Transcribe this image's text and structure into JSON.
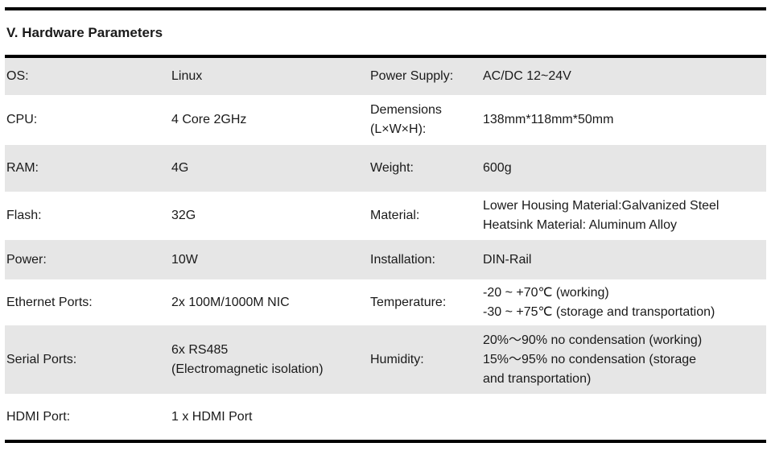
{
  "title": "V. Hardware Parameters",
  "rows": [
    {
      "label": "OS:",
      "value": "Linux",
      "label2": "Power Supply:",
      "value2": [
        "AC/DC 12~24V"
      ]
    },
    {
      "label": "CPU:",
      "value": "4 Core 2GHz",
      "label2": [
        "Demensions",
        "(L×W×H):"
      ],
      "value2": [
        "138mm*118mm*50mm"
      ]
    },
    {
      "label": "RAM:",
      "value": "4G",
      "label2": "Weight:",
      "value2": [
        "600g"
      ]
    },
    {
      "label": "Flash:",
      "value": "32G",
      "label2": "Material:",
      "value2": [
        "Lower Housing Material:Galvanized Steel",
        "Heatsink Material: Aluminum Alloy"
      ]
    },
    {
      "label": "Power:",
      "value": "10W",
      "label2": "Installation:",
      "value2": [
        "DIN-Rail"
      ]
    },
    {
      "label": "Ethernet Ports:",
      "value": "2x 100M/1000M NIC",
      "label2": "Temperature:",
      "value2": [
        "-20 ~ +70℃ (working)",
        "-30 ~ +75℃ (storage and transportation)"
      ]
    },
    {
      "label": "Serial Ports:",
      "value": [
        "6x RS485",
        "(Electromagnetic isolation)"
      ],
      "label2": "Humidity:",
      "value2": [
        "20%～90% no condensation (working)",
        "15%～95% no condensation (storage",
        "and transportation)"
      ]
    },
    {
      "label": "HDMI Port:",
      "value": "1 x HDMI Port",
      "label2": "",
      "value2": []
    }
  ]
}
